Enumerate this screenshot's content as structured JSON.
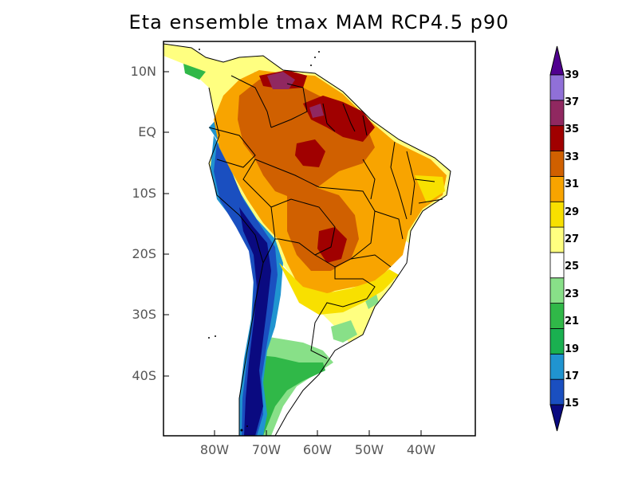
{
  "title": "Eta ensemble tmax MAM RCP4.5 p90",
  "lat_labels": [
    "10N",
    "EQ",
    "10S",
    "20S",
    "30S",
    "40S"
  ],
  "lon_labels": [
    "80W",
    "70W",
    "60W",
    "50W",
    "40W"
  ],
  "colorbar": {
    "labels": [
      "15",
      "17",
      "19",
      "21",
      "23",
      "25",
      "27",
      "29",
      "31",
      "33",
      "35",
      "37",
      "39"
    ],
    "colors": [
      "#0a0a80",
      "#1a4fc0",
      "#2094d0",
      "#1ab050",
      "#30b848",
      "#88e088",
      "#ffffff",
      "#ffff80",
      "#f8e000",
      "#f8a400",
      "#d06000",
      "#a00000",
      "#902860",
      "#9070d8",
      "#500090"
    ]
  }
}
